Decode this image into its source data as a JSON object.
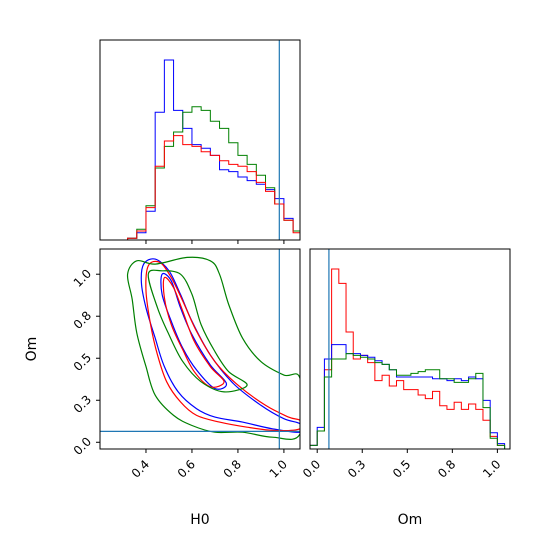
{
  "figure": {
    "x_labels": [
      "H0",
      "Om"
    ],
    "y_label": "Om"
  },
  "chart_data": [
    {
      "panel": "H0 histogram",
      "type": "step-histogram",
      "x_ticks": [
        0.4,
        0.6,
        0.8,
        1.0
      ],
      "xlim": [
        0.2,
        1.07
      ],
      "x_bins": [
        0.2,
        0.24,
        0.28,
        0.32,
        0.36,
        0.4,
        0.44,
        0.48,
        0.52,
        0.56,
        0.6,
        0.64,
        0.68,
        0.72,
        0.76,
        0.8,
        0.84,
        0.88,
        0.92,
        0.96,
        1.0,
        1.04,
        1.07
      ],
      "truth": 0.98,
      "truth_color": "#1f77b4",
      "series": [
        {
          "color": "#0000ff",
          "values": [
            0,
            0,
            0,
            0.01,
            0.04,
            0.16,
            0.71,
            1.0,
            0.72,
            0.62,
            0.53,
            0.51,
            0.47,
            0.39,
            0.38,
            0.35,
            0.33,
            0.31,
            0.28,
            0.23,
            0.12,
            0.05
          ]
        },
        {
          "color": "#008000",
          "values": [
            0,
            0,
            0,
            0.01,
            0.06,
            0.19,
            0.4,
            0.52,
            0.6,
            0.71,
            0.74,
            0.72,
            0.66,
            0.62,
            0.54,
            0.47,
            0.42,
            0.36,
            0.29,
            0.2,
            0.11,
            0.05
          ]
        },
        {
          "color": "#ff0000",
          "values": [
            0,
            0,
            0,
            0.01,
            0.05,
            0.18,
            0.41,
            0.55,
            0.58,
            0.53,
            0.52,
            0.49,
            0.47,
            0.44,
            0.42,
            0.41,
            0.38,
            0.32,
            0.27,
            0.2,
            0.11,
            0.04
          ]
        }
      ]
    },
    {
      "panel": "H0 vs Om contours",
      "type": "contour",
      "x_ticks": [
        0.4,
        0.6,
        0.8,
        1.0
      ],
      "y_ticks": [
        0.0,
        0.25,
        0.5,
        0.75,
        1.0
      ],
      "xlim": [
        0.2,
        1.07
      ],
      "ylim": [
        -0.04,
        1.15
      ],
      "truth": {
        "x": 0.98,
        "y": 0.065
      },
      "truth_color": "#1f77b4",
      "series": [
        {
          "color": "#0000ff",
          "outer": [
            [
              0.39,
              1.06
            ],
            [
              0.44,
              1.09
            ],
            [
              0.5,
              1.02
            ],
            [
              0.55,
              0.88
            ],
            [
              0.6,
              0.72
            ],
            [
              0.68,
              0.52
            ],
            [
              0.78,
              0.35
            ],
            [
              0.9,
              0.22
            ],
            [
              1.0,
              0.14
            ],
            [
              1.07,
              0.11
            ],
            [
              1.07,
              0.06
            ],
            [
              0.95,
              0.08
            ],
            [
              0.82,
              0.12
            ],
            [
              0.7,
              0.15
            ],
            [
              0.62,
              0.2
            ],
            [
              0.54,
              0.3
            ],
            [
              0.48,
              0.45
            ],
            [
              0.44,
              0.62
            ],
            [
              0.4,
              0.8
            ],
            [
              0.38,
              0.95
            ]
          ],
          "inner": [
            [
              0.47,
              1.0
            ],
            [
              0.51,
              0.96
            ],
            [
              0.55,
              0.8
            ],
            [
              0.6,
              0.64
            ],
            [
              0.68,
              0.46
            ],
            [
              0.75,
              0.35
            ],
            [
              0.7,
              0.32
            ],
            [
              0.62,
              0.43
            ],
            [
              0.56,
              0.56
            ],
            [
              0.51,
              0.72
            ],
            [
              0.47,
              0.88
            ]
          ]
        },
        {
          "color": "#ff0000",
          "outer": [
            [
              0.41,
              1.05
            ],
            [
              0.46,
              1.07
            ],
            [
              0.51,
              0.98
            ],
            [
              0.56,
              0.84
            ],
            [
              0.62,
              0.66
            ],
            [
              0.7,
              0.48
            ],
            [
              0.8,
              0.34
            ],
            [
              0.92,
              0.22
            ],
            [
              1.02,
              0.15
            ],
            [
              1.07,
              0.13
            ],
            [
              1.07,
              0.08
            ],
            [
              0.96,
              0.07
            ],
            [
              0.84,
              0.09
            ],
            [
              0.72,
              0.12
            ],
            [
              0.62,
              0.16
            ],
            [
              0.55,
              0.24
            ],
            [
              0.49,
              0.36
            ],
            [
              0.45,
              0.52
            ],
            [
              0.42,
              0.7
            ],
            [
              0.4,
              0.9
            ]
          ],
          "inner": [
            [
              0.48,
              0.98
            ],
            [
              0.52,
              0.92
            ],
            [
              0.56,
              0.78
            ],
            [
              0.61,
              0.6
            ],
            [
              0.68,
              0.45
            ],
            [
              0.74,
              0.36
            ],
            [
              0.68,
              0.33
            ],
            [
              0.61,
              0.42
            ],
            [
              0.56,
              0.55
            ],
            [
              0.51,
              0.7
            ],
            [
              0.48,
              0.86
            ]
          ]
        },
        {
          "color": "#008000",
          "outer": [
            [
              0.32,
              1.0
            ],
            [
              0.36,
              1.08
            ],
            [
              0.44,
              1.06
            ],
            [
              0.58,
              1.1
            ],
            [
              0.68,
              1.08
            ],
            [
              0.72,
              1.0
            ],
            [
              0.76,
              0.82
            ],
            [
              0.82,
              0.62
            ],
            [
              0.9,
              0.48
            ],
            [
              1.0,
              0.4
            ],
            [
              1.07,
              0.38
            ],
            [
              1.07,
              0.05
            ],
            [
              0.95,
              0.03
            ],
            [
              0.82,
              0.06
            ],
            [
              0.7,
              0.06
            ],
            [
              0.6,
              0.1
            ],
            [
              0.52,
              0.16
            ],
            [
              0.44,
              0.28
            ],
            [
              0.4,
              0.45
            ],
            [
              0.36,
              0.65
            ],
            [
              0.34,
              0.85
            ]
          ],
          "inner": [
            [
              0.41,
              1.0
            ],
            [
              0.47,
              1.02
            ],
            [
              0.55,
              1.0
            ],
            [
              0.6,
              0.88
            ],
            [
              0.64,
              0.7
            ],
            [
              0.7,
              0.54
            ],
            [
              0.76,
              0.42
            ],
            [
              0.84,
              0.34
            ],
            [
              0.74,
              0.3
            ],
            [
              0.64,
              0.36
            ],
            [
              0.56,
              0.48
            ],
            [
              0.5,
              0.64
            ],
            [
              0.45,
              0.8
            ]
          ]
        }
      ]
    },
    {
      "panel": "Om histogram",
      "type": "step-histogram",
      "x_ticks": [
        0.0,
        0.25,
        0.5,
        0.75,
        1.0
      ],
      "xlim": [
        -0.04,
        1.07
      ],
      "x_bins": [
        -0.04,
        0.0,
        0.04,
        0.08,
        0.12,
        0.16,
        0.2,
        0.24,
        0.28,
        0.32,
        0.36,
        0.4,
        0.44,
        0.48,
        0.52,
        0.56,
        0.6,
        0.64,
        0.68,
        0.72,
        0.76,
        0.8,
        0.84,
        0.88,
        0.92,
        0.96,
        1.0,
        1.04,
        1.07
      ],
      "truth": 0.065,
      "truth_color": "#1f77b4",
      "series": [
        {
          "color": "#ff0000",
          "values": [
            0.02,
            0.1,
            0.44,
            1.0,
            0.92,
            0.65,
            0.5,
            0.52,
            0.48,
            0.38,
            0.41,
            0.35,
            0.38,
            0.33,
            0.33,
            0.3,
            0.28,
            0.32,
            0.24,
            0.22,
            0.26,
            0.22,
            0.25,
            0.22,
            0.16,
            0.07,
            0.02,
            0
          ]
        },
        {
          "color": "#0000ff",
          "values": [
            0.02,
            0.12,
            0.5,
            0.58,
            0.58,
            0.53,
            0.53,
            0.52,
            0.51,
            0.49,
            0.47,
            0.44,
            0.4,
            0.4,
            0.4,
            0.4,
            0.4,
            0.39,
            0.39,
            0.38,
            0.39,
            0.38,
            0.4,
            0.39,
            0.27,
            0.09,
            0.03,
            0
          ]
        },
        {
          "color": "#008000",
          "values": [
            0.02,
            0.1,
            0.4,
            0.5,
            0.5,
            0.53,
            0.52,
            0.51,
            0.5,
            0.48,
            0.47,
            0.44,
            0.41,
            0.41,
            0.42,
            0.43,
            0.44,
            0.44,
            0.39,
            0.39,
            0.37,
            0.37,
            0.39,
            0.42,
            0.23,
            0.06,
            0.02,
            0
          ]
        }
      ]
    }
  ]
}
